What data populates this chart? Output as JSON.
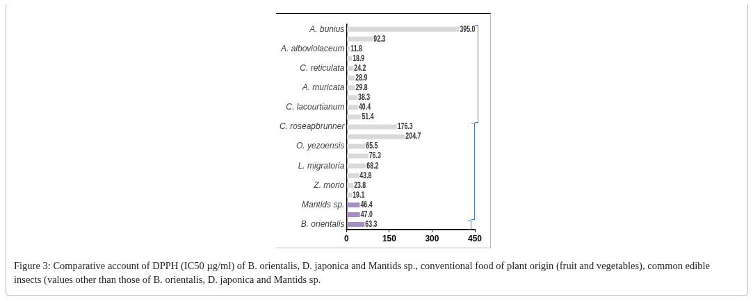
{
  "chart_data": {
    "type": "bar",
    "orientation": "horizontal",
    "categories": [
      "A. bunius",
      null,
      "A. alboviolaceum",
      null,
      "C. reticulata",
      null,
      "A. muricata",
      null,
      "C. lacourtianum",
      null,
      "C. roseapbrunner",
      null,
      "O. yezoensis",
      null,
      "L. migratoria",
      null,
      "Z. morio",
      null,
      "Mantids sp.",
      null,
      "B. orientalis"
    ],
    "values": [
      395.0,
      92.3,
      11.8,
      18.9,
      24.2,
      28.9,
      29.8,
      38.3,
      40.4,
      51.4,
      176.3,
      204.7,
      65.5,
      76.3,
      68.2,
      43.8,
      23.8,
      19.1,
      46.4,
      47.0,
      63.3
    ],
    "colors": [
      "#d9d9d9",
      "#d9d9d9",
      "#d9d9d9",
      "#d9d9d9",
      "#d9d9d9",
      "#d9d9d9",
      "#d9d9d9",
      "#d9d9d9",
      "#d9d9d9",
      "#d9d9d9",
      "#d9d9d9",
      "#d9d9d9",
      "#d9d9d9",
      "#d9d9d9",
      "#d9d9d9",
      "#d9d9d9",
      "#d9d9d9",
      "#d9d9d9",
      "#a48fc0",
      "#a48fc0",
      "#a48fc0"
    ],
    "value_labels": [
      "395.0",
      "92.3",
      "11.8",
      "18.9",
      "24.2",
      "28.9",
      "29.8",
      "38.3",
      "40.4",
      "51.4",
      "176.3",
      "204.7",
      "65.5",
      "76.3",
      "68.2",
      "43.8",
      "23.8",
      "19.1",
      "46.4",
      "47.0",
      "63.3"
    ],
    "xlim": [
      0,
      450
    ],
    "xticks": [
      0,
      150,
      300,
      450
    ],
    "grid": false,
    "legend": false,
    "annotations": [
      "Figure 3: Comparative account of DPPH (IC50 µg/ml) of B. orientalis, D. japonica and Mantids sp., conventional food of plant origin (fruit and vegetables), common edible insects (values other than those of B. orientalis, D. japonica and Mantids sp."
    ]
  }
}
